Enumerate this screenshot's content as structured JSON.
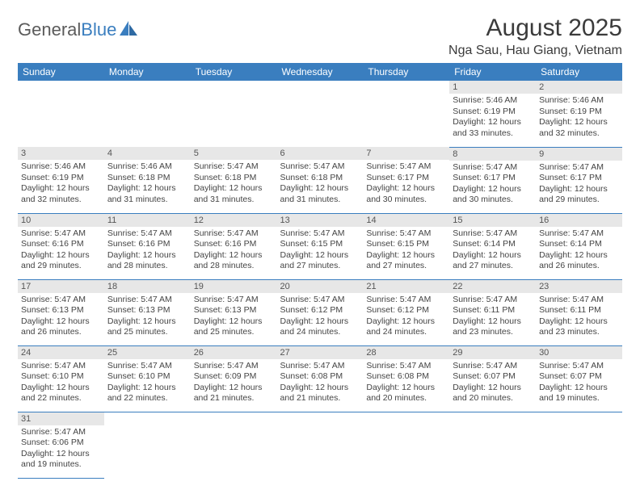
{
  "brand": {
    "part1": "General",
    "part2": "Blue"
  },
  "title": "August 2025",
  "location": "Nga Sau, Hau Giang, Vietnam",
  "colors": {
    "header_bg": "#3a7ebf",
    "header_text": "#ffffff",
    "daynum_bg": "#e7e7e7",
    "text": "#444444",
    "border": "#3a7ebf",
    "brand_gray": "#5b5b5b",
    "brand_blue": "#3a7ebf"
  },
  "weekdays": [
    "Sunday",
    "Monday",
    "Tuesday",
    "Wednesday",
    "Thursday",
    "Friday",
    "Saturday"
  ],
  "weeks": [
    [
      null,
      null,
      null,
      null,
      null,
      {
        "n": "1",
        "sr": "5:46 AM",
        "ss": "6:19 PM",
        "dl": "12 hours and 33 minutes."
      },
      {
        "n": "2",
        "sr": "5:46 AM",
        "ss": "6:19 PM",
        "dl": "12 hours and 32 minutes."
      }
    ],
    [
      {
        "n": "3",
        "sr": "5:46 AM",
        "ss": "6:19 PM",
        "dl": "12 hours and 32 minutes."
      },
      {
        "n": "4",
        "sr": "5:46 AM",
        "ss": "6:18 PM",
        "dl": "12 hours and 31 minutes."
      },
      {
        "n": "5",
        "sr": "5:47 AM",
        "ss": "6:18 PM",
        "dl": "12 hours and 31 minutes."
      },
      {
        "n": "6",
        "sr": "5:47 AM",
        "ss": "6:18 PM",
        "dl": "12 hours and 31 minutes."
      },
      {
        "n": "7",
        "sr": "5:47 AM",
        "ss": "6:17 PM",
        "dl": "12 hours and 30 minutes."
      },
      {
        "n": "8",
        "sr": "5:47 AM",
        "ss": "6:17 PM",
        "dl": "12 hours and 30 minutes."
      },
      {
        "n": "9",
        "sr": "5:47 AM",
        "ss": "6:17 PM",
        "dl": "12 hours and 29 minutes."
      }
    ],
    [
      {
        "n": "10",
        "sr": "5:47 AM",
        "ss": "6:16 PM",
        "dl": "12 hours and 29 minutes."
      },
      {
        "n": "11",
        "sr": "5:47 AM",
        "ss": "6:16 PM",
        "dl": "12 hours and 28 minutes."
      },
      {
        "n": "12",
        "sr": "5:47 AM",
        "ss": "6:16 PM",
        "dl": "12 hours and 28 minutes."
      },
      {
        "n": "13",
        "sr": "5:47 AM",
        "ss": "6:15 PM",
        "dl": "12 hours and 27 minutes."
      },
      {
        "n": "14",
        "sr": "5:47 AM",
        "ss": "6:15 PM",
        "dl": "12 hours and 27 minutes."
      },
      {
        "n": "15",
        "sr": "5:47 AM",
        "ss": "6:14 PM",
        "dl": "12 hours and 27 minutes."
      },
      {
        "n": "16",
        "sr": "5:47 AM",
        "ss": "6:14 PM",
        "dl": "12 hours and 26 minutes."
      }
    ],
    [
      {
        "n": "17",
        "sr": "5:47 AM",
        "ss": "6:13 PM",
        "dl": "12 hours and 26 minutes."
      },
      {
        "n": "18",
        "sr": "5:47 AM",
        "ss": "6:13 PM",
        "dl": "12 hours and 25 minutes."
      },
      {
        "n": "19",
        "sr": "5:47 AM",
        "ss": "6:13 PM",
        "dl": "12 hours and 25 minutes."
      },
      {
        "n": "20",
        "sr": "5:47 AM",
        "ss": "6:12 PM",
        "dl": "12 hours and 24 minutes."
      },
      {
        "n": "21",
        "sr": "5:47 AM",
        "ss": "6:12 PM",
        "dl": "12 hours and 24 minutes."
      },
      {
        "n": "22",
        "sr": "5:47 AM",
        "ss": "6:11 PM",
        "dl": "12 hours and 23 minutes."
      },
      {
        "n": "23",
        "sr": "5:47 AM",
        "ss": "6:11 PM",
        "dl": "12 hours and 23 minutes."
      }
    ],
    [
      {
        "n": "24",
        "sr": "5:47 AM",
        "ss": "6:10 PM",
        "dl": "12 hours and 22 minutes."
      },
      {
        "n": "25",
        "sr": "5:47 AM",
        "ss": "6:10 PM",
        "dl": "12 hours and 22 minutes."
      },
      {
        "n": "26",
        "sr": "5:47 AM",
        "ss": "6:09 PM",
        "dl": "12 hours and 21 minutes."
      },
      {
        "n": "27",
        "sr": "5:47 AM",
        "ss": "6:08 PM",
        "dl": "12 hours and 21 minutes."
      },
      {
        "n": "28",
        "sr": "5:47 AM",
        "ss": "6:08 PM",
        "dl": "12 hours and 20 minutes."
      },
      {
        "n": "29",
        "sr": "5:47 AM",
        "ss": "6:07 PM",
        "dl": "12 hours and 20 minutes."
      },
      {
        "n": "30",
        "sr": "5:47 AM",
        "ss": "6:07 PM",
        "dl": "12 hours and 19 minutes."
      }
    ],
    [
      {
        "n": "31",
        "sr": "5:47 AM",
        "ss": "6:06 PM",
        "dl": "12 hours and 19 minutes."
      },
      null,
      null,
      null,
      null,
      null,
      null
    ]
  ],
  "labels": {
    "sunrise": "Sunrise: ",
    "sunset": "Sunset: ",
    "daylight": "Daylight: "
  }
}
